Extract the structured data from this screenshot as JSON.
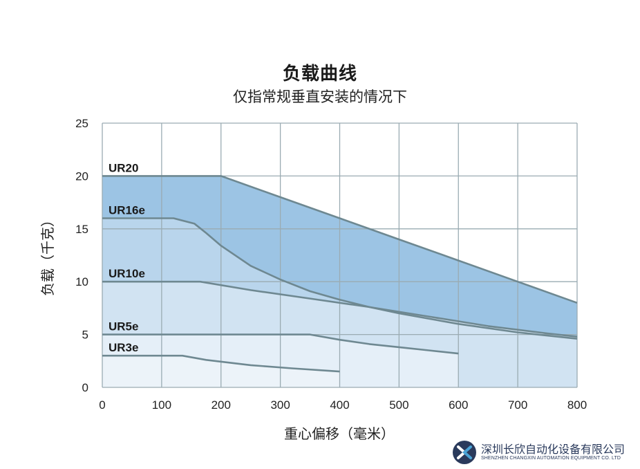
{
  "chart_data": {
    "type": "area",
    "title": "负载曲线",
    "subtitle": "仅指常规垂直安装的情况下",
    "xlabel": "重心偏移（毫米）",
    "ylabel": "负载（千克）",
    "xlim": [
      0,
      800
    ],
    "ylim": [
      0,
      25
    ],
    "x_ticks": [
      0,
      100,
      200,
      300,
      400,
      500,
      600,
      700,
      800
    ],
    "y_ticks": [
      0,
      5,
      10,
      15,
      20,
      25
    ],
    "grid": true,
    "series": [
      {
        "name": "UR20",
        "color": "#9cc4e4",
        "points": [
          [
            0,
            20
          ],
          [
            200,
            20
          ],
          [
            300,
            18
          ],
          [
            400,
            16
          ],
          [
            500,
            14
          ],
          [
            600,
            12
          ],
          [
            700,
            10
          ],
          [
            800,
            8
          ]
        ]
      },
      {
        "name": "UR16e",
        "color": "#b9d5ec",
        "points": [
          [
            0,
            16
          ],
          [
            120,
            16
          ],
          [
            155,
            15.5
          ],
          [
            175,
            14.6
          ],
          [
            200,
            13.4
          ],
          [
            250,
            11.5
          ],
          [
            300,
            10.2
          ],
          [
            350,
            9.1
          ],
          [
            400,
            8.3
          ],
          [
            450,
            7.6
          ],
          [
            500,
            7
          ],
          [
            600,
            6
          ],
          [
            700,
            5.2
          ],
          [
            800,
            4.6
          ]
        ]
      },
      {
        "name": "UR10e",
        "color": "#d1e3f2",
        "points": [
          [
            0,
            10
          ],
          [
            165,
            10
          ],
          [
            250,
            9.2
          ],
          [
            350,
            8.4
          ],
          [
            450,
            7.6
          ],
          [
            550,
            6.7
          ],
          [
            650,
            5.8
          ],
          [
            750,
            5.1
          ],
          [
            800,
            4.8
          ]
        ]
      },
      {
        "name": "UR5e",
        "color": "#e5eff8",
        "points": [
          [
            0,
            5
          ],
          [
            350,
            5
          ],
          [
            400,
            4.5
          ],
          [
            450,
            4.1
          ],
          [
            500,
            3.8
          ],
          [
            550,
            3.5
          ],
          [
            600,
            3.2
          ]
        ]
      },
      {
        "name": "UR3e",
        "color": "#ecf3f9",
        "points": [
          [
            0,
            3
          ],
          [
            135,
            3
          ],
          [
            175,
            2.6
          ],
          [
            250,
            2.1
          ],
          [
            320,
            1.8
          ],
          [
            400,
            1.5
          ]
        ]
      }
    ],
    "line_color": "#6e8891",
    "grid_color": "#9aabb2"
  },
  "company": {
    "name_cn": "深圳长欣自动化设备有限公司",
    "name_en": "SHENZHEN CHANGXIN AUTOMATION EQUIPMENT CO. LTD",
    "logo_colors": [
      "#2a3a5c",
      "#4aa3d6"
    ]
  }
}
